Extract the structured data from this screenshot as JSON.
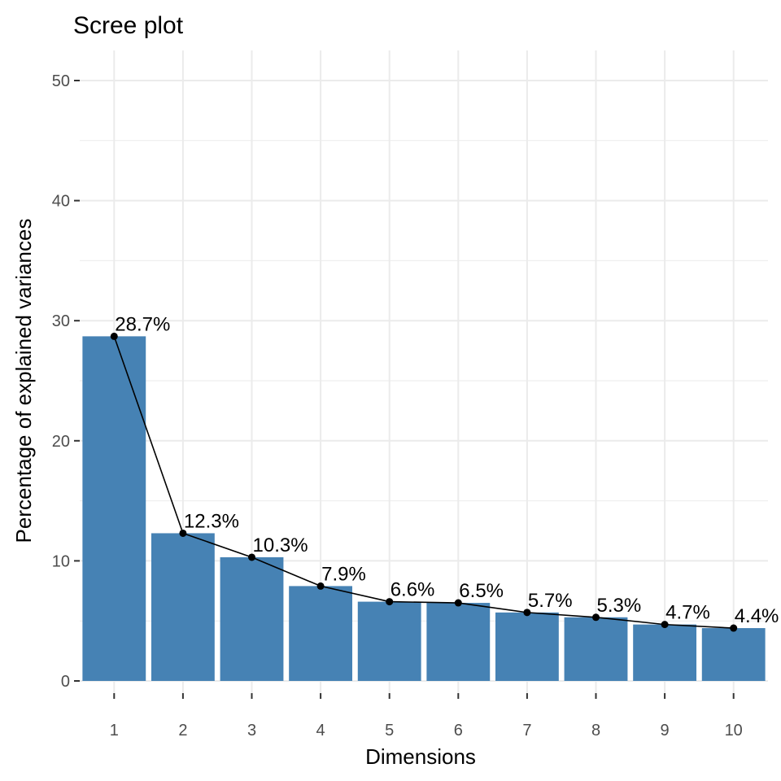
{
  "chart_data": {
    "type": "bar",
    "title": "Scree plot",
    "xlabel": "Dimensions",
    "ylabel": "Percentage of explained variances",
    "categories": [
      "1",
      "2",
      "3",
      "4",
      "5",
      "6",
      "7",
      "8",
      "9",
      "10"
    ],
    "values": [
      28.7,
      12.3,
      10.3,
      7.9,
      6.6,
      6.5,
      5.7,
      5.3,
      4.7,
      4.4
    ],
    "data_labels": [
      "28.7%",
      "12.3%",
      "10.3%",
      "7.9%",
      "6.6%",
      "6.5%",
      "5.7%",
      "5.3%",
      "4.7%",
      "4.4%"
    ],
    "ylim": [
      0,
      50
    ],
    "yticks": [
      "0",
      "10",
      "20",
      "30",
      "40",
      "50"
    ],
    "ytick_values": [
      0,
      10,
      20,
      30,
      40,
      50
    ],
    "overlay": "line with points",
    "grid": true,
    "bar_color": "#4682b4",
    "line_color": "#000000",
    "grid_color": "#ebebeb"
  }
}
